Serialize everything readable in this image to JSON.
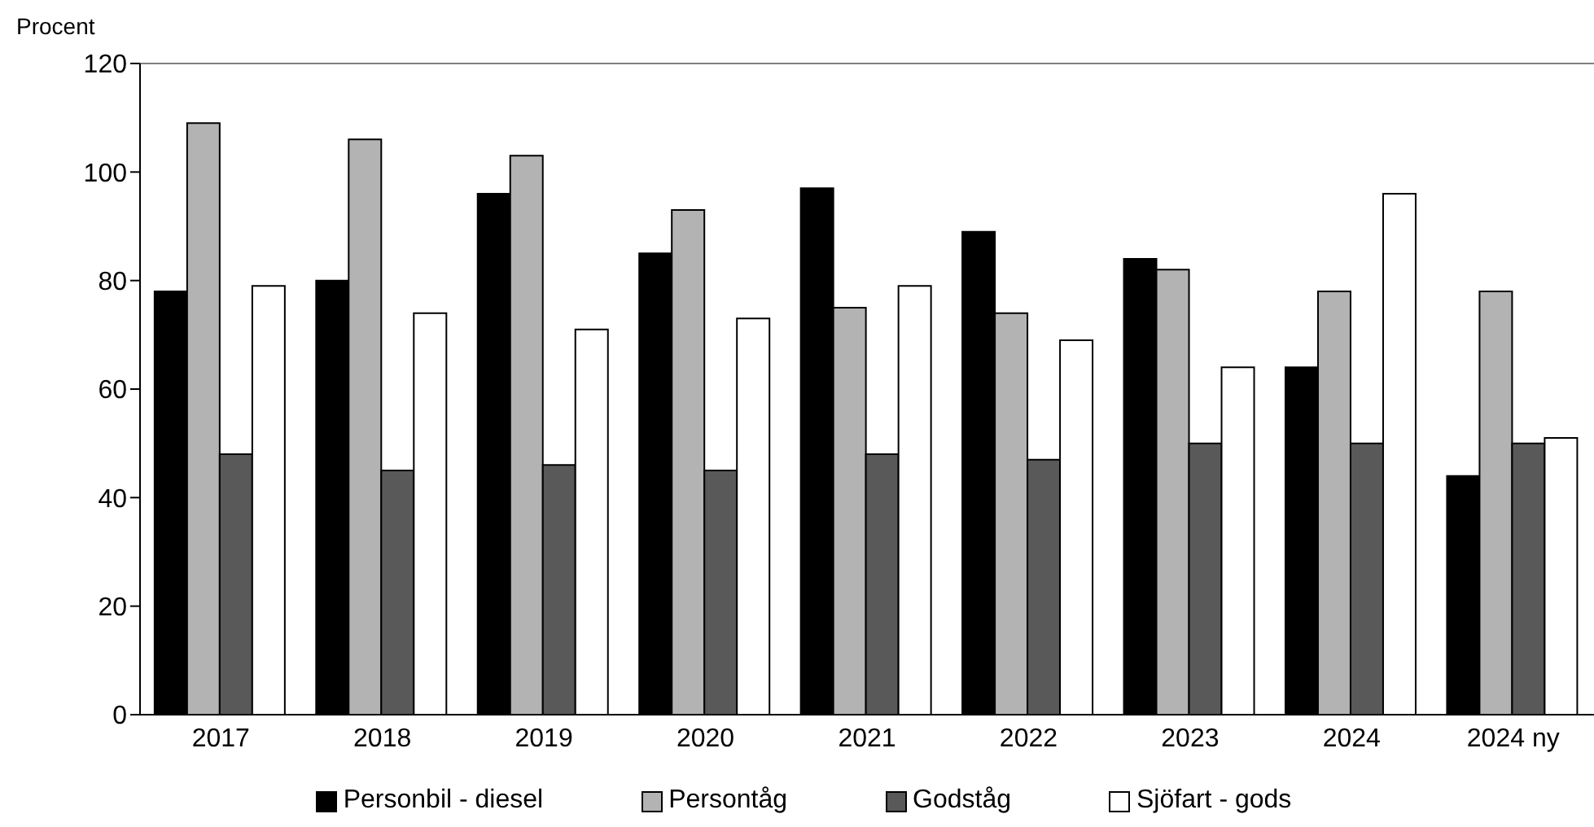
{
  "chart_data": {
    "type": "bar",
    "ylabel": "Procent",
    "categories": [
      "2017",
      "2018",
      "2019",
      "2020",
      "2021",
      "2022",
      "2023",
      "2024",
      "2024 ny"
    ],
    "series": [
      {
        "name": "Personbil - diesel",
        "color": "#000000",
        "values": [
          78,
          80,
          96,
          85,
          97,
          89,
          84,
          64,
          44
        ]
      },
      {
        "name": "Persontåg",
        "color": "#b3b3b3",
        "values": [
          109,
          106,
          103,
          93,
          75,
          74,
          82,
          78,
          78
        ]
      },
      {
        "name": "Godståg",
        "color": "#595959",
        "values": [
          48,
          45,
          46,
          45,
          48,
          47,
          50,
          50,
          50
        ]
      },
      {
        "name": "Sjöfart - gods",
        "color": "#ffffff",
        "values": [
          79,
          74,
          71,
          73,
          79,
          69,
          64,
          96,
          51
        ]
      }
    ],
    "ylim": [
      0,
      120
    ],
    "yticks": [
      0,
      20,
      40,
      60,
      80,
      100,
      120
    ],
    "legend": "bottom"
  }
}
